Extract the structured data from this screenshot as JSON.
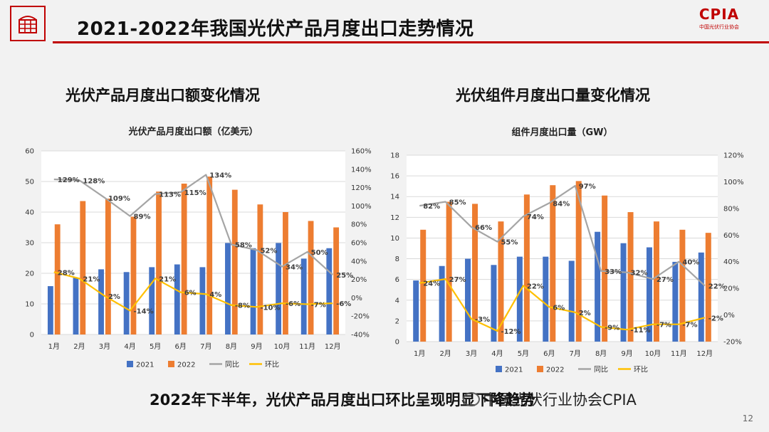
{
  "header": {
    "title": "2021-2022年我国光伏产品月度出口走势情况",
    "brand_name": "CPIA",
    "brand_sub": "中国光伏行业协会",
    "brand_color": "#c00000"
  },
  "left_heading": "光伏产品月度出口额变化情况",
  "right_heading": "光伏组件月度出口量变化情况",
  "footer_text": "2022年下半年，光伏产品月度出口环比呈现明显下降趋势",
  "watermark": "中国光伏行业协会CPIA",
  "page_number": "12",
  "colors": {
    "s2021": "#4472c4",
    "s2022": "#ed7d31",
    "yoy": "#a5a5a5",
    "mom": "#ffc000"
  },
  "chart_data": [
    {
      "type": "bar",
      "title": "光伏产品月度出口额（亿美元）",
      "categories": [
        "1月",
        "2月",
        "3月",
        "4月",
        "5月",
        "6月",
        "7月",
        "8月",
        "9月",
        "10月",
        "11月",
        "12月"
      ],
      "ylim": [
        0,
        60
      ],
      "yticks": [
        "0",
        "10",
        "20",
        "30",
        "40",
        "50",
        "60"
      ],
      "y2lim": [
        -40,
        160
      ],
      "y2ticks": [
        "-40%",
        "-20%",
        "0%",
        "20%",
        "40%",
        "60%",
        "80%",
        "100%",
        "120%",
        "140%",
        "160%"
      ],
      "series": [
        {
          "name": "2021",
          "type": "bar",
          "values": [
            15.8,
            18.6,
            21.3,
            20.4,
            22.0,
            22.9,
            22.0,
            29.9,
            28.2,
            29.9,
            24.8,
            28.2
          ]
        },
        {
          "name": "2022",
          "type": "bar",
          "values": [
            36.0,
            43.6,
            44.4,
            38.5,
            46.7,
            49.3,
            51.6,
            47.3,
            42.5,
            40.0,
            37.1,
            35.0
          ]
        },
        {
          "name": "同比",
          "type": "line",
          "values": [
            129,
            128,
            109,
            89,
            113,
            115,
            134,
            58,
            52,
            34,
            50,
            25
          ],
          "labels": [
            "129%",
            "128%",
            "109%",
            "89%",
            "113%",
            "115%",
            "134%",
            "58%",
            "52%",
            "34%",
            "50%",
            "25%"
          ]
        },
        {
          "name": "环比",
          "type": "line",
          "values": [
            28,
            21,
            2,
            -14,
            21,
            6,
            4,
            -8,
            -10,
            -6,
            -7,
            -6
          ],
          "labels": [
            "28%",
            "21%",
            "2%",
            "-14%",
            "21%",
            "6%",
            "4%",
            "-8%",
            "-10%",
            "-6%",
            "-7%",
            "-6%"
          ]
        }
      ]
    },
    {
      "type": "bar",
      "title": "组件月度出口量（GW）",
      "categories": [
        "1月",
        "2月",
        "3月",
        "4月",
        "5月",
        "6月",
        "7月",
        "8月",
        "9月",
        "10月",
        "11月",
        "12月"
      ],
      "ylim": [
        0,
        18
      ],
      "yticks": [
        "0",
        "2",
        "4",
        "6",
        "8",
        "10",
        "12",
        "14",
        "16",
        "18"
      ],
      "y2lim": [
        -20,
        120
      ],
      "y2ticks": [
        "-20%",
        "0%",
        "20%",
        "40%",
        "60%",
        "80%",
        "100%",
        "120%"
      ],
      "series": [
        {
          "name": "2021",
          "type": "bar",
          "values": [
            5.9,
            7.3,
            8.0,
            7.4,
            8.2,
            8.2,
            7.8,
            10.6,
            9.5,
            9.1,
            7.7,
            8.6
          ]
        },
        {
          "name": "2022",
          "type": "bar",
          "values": [
            10.8,
            13.5,
            13.3,
            11.6,
            14.2,
            15.1,
            15.5,
            14.1,
            12.5,
            11.6,
            10.8,
            10.5
          ]
        },
        {
          "name": "同比",
          "type": "line",
          "values": [
            82,
            85,
            66,
            55,
            74,
            84,
            97,
            33,
            32,
            27,
            40,
            22
          ],
          "labels": [
            "82%",
            "85%",
            "66%",
            "55%",
            "74%",
            "84%",
            "97%",
            "33%",
            "32%",
            "27%",
            "40%",
            "22%"
          ]
        },
        {
          "name": "环比",
          "type": "line",
          "values": [
            24,
            27,
            -3,
            -12,
            22,
            6,
            2,
            -9,
            -11,
            -7,
            -7,
            -2
          ],
          "labels": [
            "24%",
            "27%",
            "-3%",
            "-12%",
            "22%",
            "6%",
            "2%",
            "-9%",
            "-11%",
            "-7%",
            "-7%",
            "-2%"
          ]
        }
      ]
    }
  ]
}
